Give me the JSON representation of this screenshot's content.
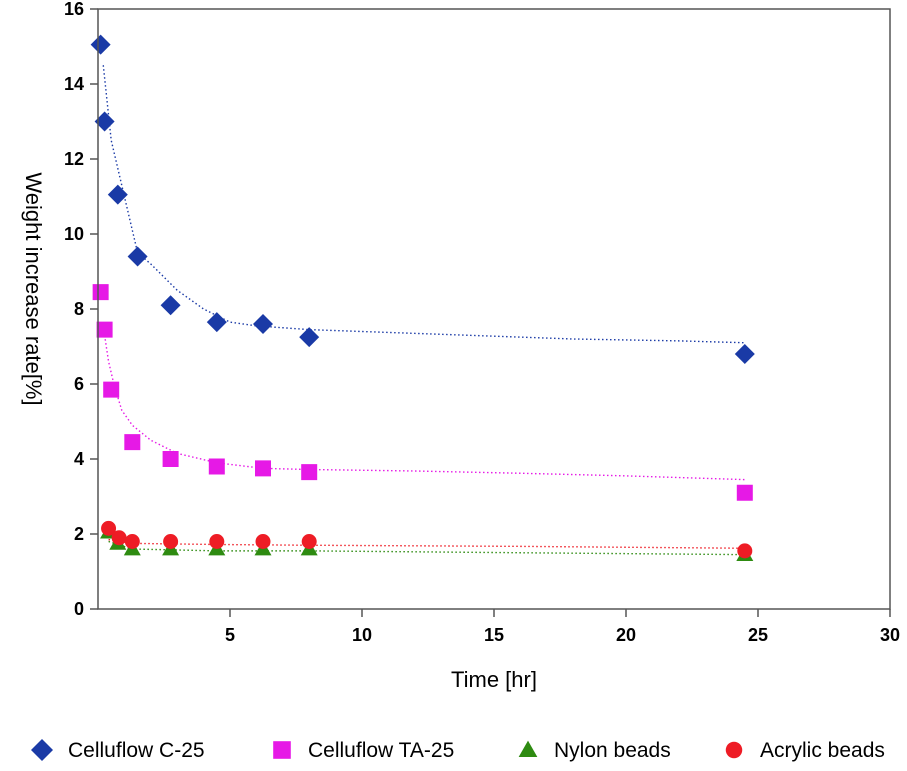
{
  "chart_data": {
    "type": "scatter",
    "xlabel": "Time [hr]",
    "ylabel": "Weight increase rate[%]",
    "xlim": [
      0,
      30
    ],
    "ylim": [
      0,
      16
    ],
    "xticks": [
      5,
      10,
      15,
      20,
      25,
      30
    ],
    "yticks": [
      0,
      2,
      4,
      6,
      8,
      10,
      12,
      14,
      16
    ],
    "xtick_labels": [
      "5",
      "10",
      "15",
      "20",
      "25",
      "30"
    ],
    "ytick_labels": [
      "0",
      "2",
      "4",
      "6",
      "8",
      "10",
      "12",
      "14",
      "16"
    ],
    "grid": false,
    "legend_position": "bottom",
    "series": [
      {
        "name": "Celluflow C-25",
        "marker": "diamond",
        "color": "#1a3aa6",
        "x": [
          0.1,
          0.25,
          0.75,
          1.5,
          2.75,
          4.5,
          6.25,
          8.0,
          24.5
        ],
        "y": [
          15.05,
          13.0,
          11.05,
          9.4,
          8.1,
          7.65,
          7.6,
          7.25,
          6.8
        ],
        "trend_x": [
          0.2,
          0.5,
          1.0,
          1.5,
          2.0,
          3.0,
          4.0,
          5.0,
          6.0,
          7.0,
          8.0,
          10.0,
          14.0,
          18.0,
          22.0,
          24.5
        ],
        "trend_y": [
          14.5,
          12.5,
          11.0,
          9.5,
          9.2,
          8.5,
          8.0,
          7.65,
          7.55,
          7.5,
          7.45,
          7.4,
          7.3,
          7.2,
          7.15,
          7.1
        ]
      },
      {
        "name": "Celluflow TA-25",
        "marker": "square",
        "color": "#e619e6",
        "x": [
          0.1,
          0.25,
          0.5,
          1.3,
          2.75,
          4.5,
          6.25,
          8.0,
          24.5
        ],
        "y": [
          8.45,
          7.45,
          5.85,
          4.45,
          4.0,
          3.8,
          3.75,
          3.65,
          3.1
        ],
        "trend_x": [
          0.25,
          0.4,
          0.6,
          0.9,
          1.3,
          2.0,
          3.0,
          4.5,
          6.25,
          8.0,
          12.0,
          16.0,
          20.0,
          24.5
        ],
        "trend_y": [
          7.3,
          6.6,
          6.0,
          5.3,
          4.9,
          4.5,
          4.15,
          3.9,
          3.75,
          3.72,
          3.68,
          3.62,
          3.55,
          3.45
        ]
      },
      {
        "name": "Nylon beads",
        "marker": "triangle",
        "color": "#2e8b11",
        "x": [
          0.4,
          0.75,
          1.3,
          2.75,
          4.5,
          6.25,
          8.0,
          24.5
        ],
        "y": [
          2.05,
          1.75,
          1.6,
          1.6,
          1.6,
          1.6,
          1.6,
          1.45
        ],
        "trend_x": [
          0.4,
          1.3,
          4.5,
          8.0,
          16.0,
          24.5
        ],
        "trend_y": [
          1.8,
          1.6,
          1.55,
          1.55,
          1.5,
          1.45
        ]
      },
      {
        "name": "Acrylic beads",
        "marker": "circle",
        "color": "#ee1c25",
        "x": [
          0.4,
          0.8,
          1.3,
          2.75,
          4.5,
          6.25,
          8.0,
          24.5
        ],
        "y": [
          2.15,
          1.9,
          1.8,
          1.8,
          1.8,
          1.8,
          1.8,
          1.55
        ],
        "trend_x": [
          0.4,
          1.3,
          4.5,
          8.0,
          16.0,
          24.5
        ],
        "trend_y": [
          1.85,
          1.75,
          1.72,
          1.7,
          1.67,
          1.62
        ]
      }
    ]
  }
}
